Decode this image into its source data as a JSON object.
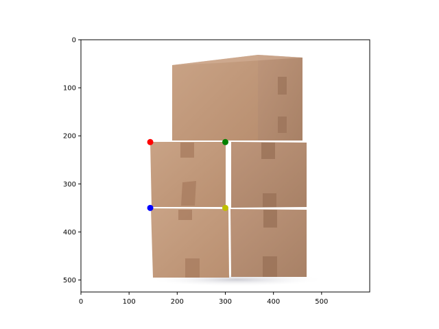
{
  "chart_data": {
    "type": "scatter",
    "title": "",
    "xlabel": "",
    "ylabel": "",
    "xlim": [
      0,
      600
    ],
    "ylim": [
      525,
      0
    ],
    "y_inverted": true,
    "grid": false,
    "x_ticks": [
      0,
      100,
      200,
      300,
      400,
      500
    ],
    "y_ticks": [
      0,
      100,
      200,
      300,
      400,
      500
    ],
    "background_image": "photo of stacked cardboard boxes (five boxes: two rows of two, one on top)",
    "points": [
      {
        "x": 144,
        "y": 213,
        "color": "#ff0000"
      },
      {
        "x": 300,
        "y": 213,
        "color": "#008000"
      },
      {
        "x": 144,
        "y": 350,
        "color": "#0000ff"
      },
      {
        "x": 300,
        "y": 350,
        "color": "#bfbf00"
      }
    ]
  }
}
